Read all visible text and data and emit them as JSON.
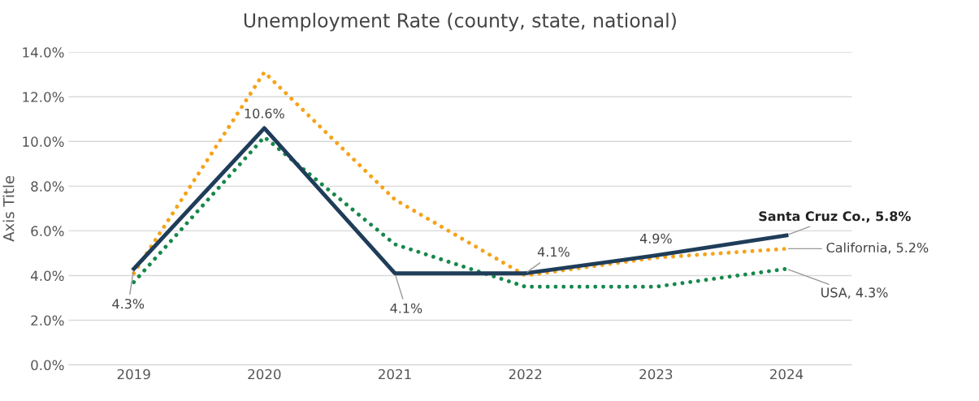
{
  "chart_data": {
    "type": "line",
    "title": "Unemployment Rate (county, state, national)",
    "ylabel": "Axis Title",
    "categories": [
      "2019",
      "2020",
      "2021",
      "2022",
      "2023",
      "2024"
    ],
    "series": [
      {
        "color": "#1f3d59",
        "line_style": "solid",
        "values": [
          4.3,
          10.6,
          4.1,
          4.1,
          4.9,
          5.8
        ],
        "value_labels": [
          "4.3%",
          "10.6%",
          "4.1%",
          "4.1%",
          "4.9%",
          "Santa Cruz Co., 5.8%"
        ]
      },
      {
        "color": "#f5a31a",
        "line_style": "dotted",
        "values": [
          4.1,
          13.1,
          7.4,
          4.0,
          4.8,
          5.2
        ],
        "value_labels": [
          null,
          null,
          null,
          null,
          null,
          "California, 5.2%"
        ]
      },
      {
        "color": "#16884a",
        "line_style": "dotted",
        "values": [
          3.7,
          10.2,
          5.4,
          3.5,
          3.5,
          4.3
        ],
        "value_labels": [
          null,
          null,
          null,
          null,
          null,
          "USA, 4.3%"
        ]
      }
    ],
    "ylim": [
      0,
      14
    ],
    "yticks": [
      {
        "value": 0,
        "label": "0.0%"
      },
      {
        "value": 2,
        "label": "2.0%"
      },
      {
        "value": 4,
        "label": "4.0%"
      },
      {
        "value": 6,
        "label": "6.0%"
      },
      {
        "value": 8,
        "label": "8.0%"
      },
      {
        "value": 10,
        "label": "10.0%"
      },
      {
        "value": 12,
        "label": "12.0%"
      },
      {
        "value": 14,
        "label": "14.0%"
      }
    ],
    "grid": "y",
    "legend": false,
    "marker": "none"
  }
}
